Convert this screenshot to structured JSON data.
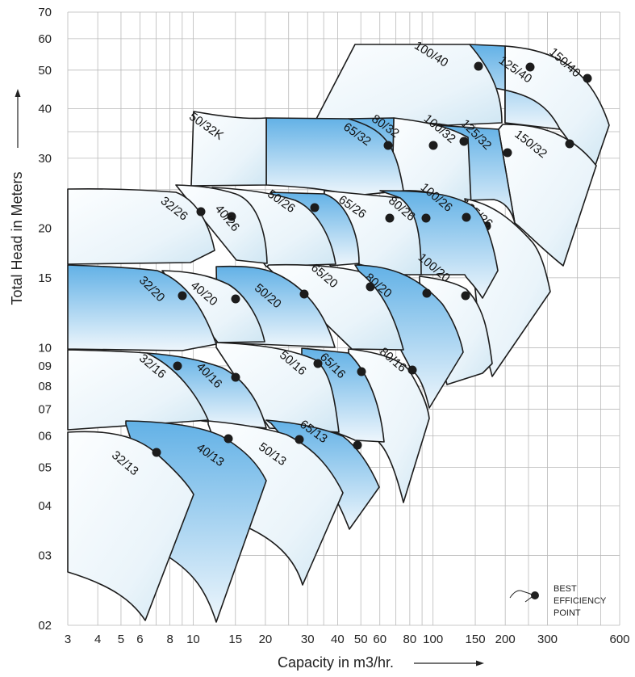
{
  "chart_data": {
    "type": "area",
    "title": "",
    "xlabel": "Capacity in m3/hr.",
    "ylabel": "Total Head in Meters",
    "x_scale": "log",
    "y_scale": "log",
    "xlim": [
      3,
      600
    ],
    "ylim": [
      2,
      70
    ],
    "grid": true,
    "x_ticks": [
      {
        "value": 3,
        "label": "3"
      },
      {
        "value": 4,
        "label": "4"
      },
      {
        "value": 5,
        "label": "5"
      },
      {
        "value": 6,
        "label": "6"
      },
      {
        "value": 8,
        "label": "8"
      },
      {
        "value": 10,
        "label": "10"
      },
      {
        "value": 15,
        "label": "15"
      },
      {
        "value": 20,
        "label": "20"
      },
      {
        "value": 30,
        "label": "30"
      },
      {
        "value": 40,
        "label": "40"
      },
      {
        "value": 50,
        "label": "50"
      },
      {
        "value": 60,
        "label": "60"
      },
      {
        "value": 80,
        "label": "80"
      },
      {
        "value": 100,
        "label": "100"
      },
      {
        "value": 150,
        "label": "150"
      },
      {
        "value": 200,
        "label": "200"
      },
      {
        "value": 300,
        "label": "300"
      },
      {
        "value": 600,
        "label": "600"
      }
    ],
    "y_ticks": [
      {
        "value": 2,
        "label": "02"
      },
      {
        "value": 3,
        "label": "03"
      },
      {
        "value": 4,
        "label": "04"
      },
      {
        "value": 5,
        "label": "05"
      },
      {
        "value": 6,
        "label": "06"
      },
      {
        "value": 7,
        "label": "07"
      },
      {
        "value": 8,
        "label": "08"
      },
      {
        "value": 9,
        "label": "09"
      },
      {
        "value": 10,
        "label": "10"
      },
      {
        "value": 15,
        "label": "15"
      },
      {
        "value": 20,
        "label": "20"
      },
      {
        "value": 30,
        "label": "30"
      },
      {
        "value": 40,
        "label": "40"
      },
      {
        "value": 50,
        "label": "50"
      },
      {
        "value": 60,
        "label": "60"
      },
      {
        "value": 70,
        "label": "70"
      }
    ],
    "regions": [
      {
        "label": "32/13",
        "bep_q": 7.3,
        "bep_h": 5.6,
        "color": "light"
      },
      {
        "label": "40/13",
        "bep_q": 14,
        "bep_h": 6.0,
        "color": "blue"
      },
      {
        "label": "50/13",
        "bep_q": 28,
        "bep_h": 5.9,
        "color": "light"
      },
      {
        "label": "65/13",
        "bep_q": 48,
        "bep_h": 5.7,
        "color": "blue"
      },
      {
        "label": "32/16",
        "bep_q": 9,
        "bep_h": 9.0,
        "color": "light"
      },
      {
        "label": "40/16",
        "bep_q": 14.5,
        "bep_h": 8.6,
        "color": "blue"
      },
      {
        "label": "50/16",
        "bep_q": 32,
        "bep_h": 9.1,
        "color": "light"
      },
      {
        "label": "65/16",
        "bep_q": 47,
        "bep_h": 8.7,
        "color": "blue"
      },
      {
        "label": "80/16",
        "bep_q": 80,
        "bep_h": 8.8,
        "color": "light"
      },
      {
        "label": "32/20",
        "bep_q": 9.5,
        "bep_h": 13.5,
        "color": "blue"
      },
      {
        "label": "40/20",
        "bep_q": 14.5,
        "bep_h": 13.2,
        "color": "light"
      },
      {
        "label": "50/20",
        "bep_q": 29,
        "bep_h": 13.4,
        "color": "blue"
      },
      {
        "label": "65/20",
        "bep_q": 48,
        "bep_h": 14.2,
        "color": "light"
      },
      {
        "label": "80/20",
        "bep_q": 88,
        "bep_h": 13.6,
        "color": "blue"
      },
      {
        "label": "100/20",
        "bep_q": 135,
        "bep_h": 13.5,
        "color": "light"
      },
      {
        "label": "32/26",
        "bep_q": 9,
        "bep_h": 22,
        "color": "light"
      },
      {
        "label": "40/26",
        "bep_q": 14,
        "bep_h": 21.5,
        "color": "light"
      },
      {
        "label": "50/26",
        "bep_q": 31,
        "bep_h": 22.5,
        "color": "light"
      },
      {
        "label": "65/26",
        "bep_q": 55,
        "bep_h": 21.2,
        "color": "blue"
      },
      {
        "label": "80/26",
        "bep_q": 88,
        "bep_h": 21.2,
        "color": "light"
      },
      {
        "label": "100/26",
        "bep_q": 150,
        "bep_h": 20.8,
        "color": "blue"
      },
      {
        "label": "125/26",
        "bep_q": 170,
        "bep_h": 20.3,
        "color": "light"
      },
      {
        "label": "50/32K",
        "bep_q": null,
        "bep_h": null,
        "color": "light"
      },
      {
        "label": "65/32",
        "bep_q": 60,
        "bep_h": 32.5,
        "color": "blue"
      },
      {
        "label": "80/32",
        "bep_q": 95,
        "bep_h": 32.5,
        "color": "blue"
      },
      {
        "label": "100/32",
        "bep_q": 130,
        "bep_h": 32.5,
        "color": "light"
      },
      {
        "label": "125/32",
        "bep_q": 200,
        "bep_h": 31,
        "color": "blue"
      },
      {
        "label": "150/32",
        "bep_q": 330,
        "bep_h": 32.5,
        "color": "light"
      },
      {
        "label": "100/40",
        "bep_q": 150,
        "bep_h": 50,
        "color": "light"
      },
      {
        "label": "125/40",
        "bep_q": 240,
        "bep_h": 50,
        "color": "blue"
      },
      {
        "label": "150/40",
        "bep_q": 400,
        "bep_h": 47,
        "color": "light"
      }
    ],
    "legend": {
      "position": "bottom-right",
      "lines": [
        "BEST",
        "EFFICIENCY",
        "POINT"
      ]
    }
  }
}
